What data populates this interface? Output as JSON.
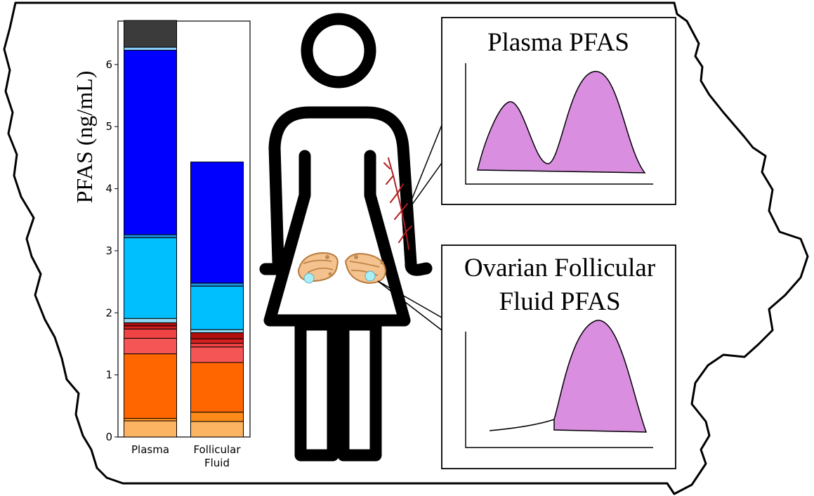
{
  "chart_data": {
    "type": "bar",
    "ylabel": "PFAS (ng/mL)",
    "ylim": [
      0,
      6.7
    ],
    "yticks": [
      "0",
      "1",
      "2",
      "3",
      "4",
      "5",
      "6"
    ],
    "categories": [
      "Plasma",
      "Follicular Fluid"
    ],
    "tick_label_lines": [
      [
        "Plasma"
      ],
      [
        "Follicular",
        "Fluid"
      ]
    ],
    "stack_colors": [
      "#fdb462",
      "#ff8c1a",
      "#ff6600",
      "#f55555",
      "#f04444",
      "#d91e1e",
      "#b20e0e",
      "#8ed6f0",
      "#00bfff",
      "#1a8cd8",
      "#0000ff",
      "#87cefa",
      "#3b3b3b"
    ],
    "stacks": [
      [
        0.26,
        0.04,
        1.04,
        0.25,
        0.15,
        0.05,
        0.05,
        0.07,
        1.3,
        0.05,
        2.97,
        0.05,
        0.43
      ],
      [
        0.25,
        0.15,
        0.8,
        0.25,
        0.06,
        0.07,
        0.1,
        0.05,
        0.7,
        0.05,
        1.95,
        0.0,
        0.0
      ]
    ]
  },
  "panels": {
    "plasma_title": "Plasma PFAS",
    "follicular_title_line1": "Ovarian Follicular",
    "follicular_title_line2": "Fluid PFAS"
  },
  "colors": {
    "outline": "#000000",
    "distribution_fill": "#d98ee0",
    "ovary_fill": "#f3c28f",
    "follicle_fill": "#a8f0f5",
    "vessel": "#b01e1e"
  }
}
